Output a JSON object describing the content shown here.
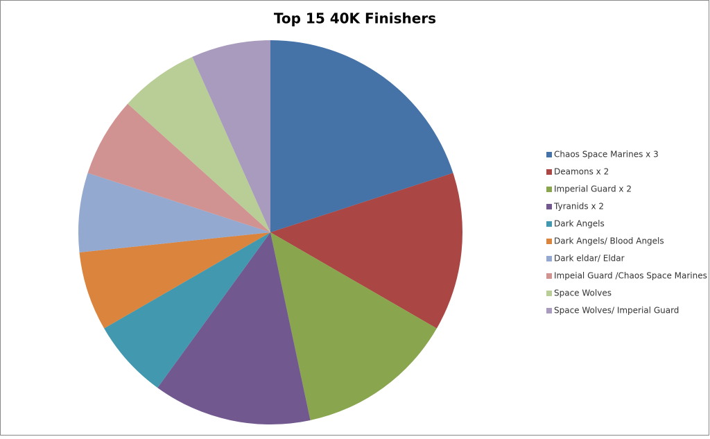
{
  "chart_data": {
    "type": "pie",
    "title": "Top 15 40K Finishers",
    "categories": [
      "Chaos Space Marines x 3",
      "Deamons x 2",
      "Imperial Guard x 2",
      "Tyranids x 2",
      "Dark Angels",
      "Dark Angels/ Blood Angels",
      "Dark eldar/ Eldar",
      "Impeial Guard /Chaos Space Marines",
      "Space Wolves",
      "Space Wolves/ Imperial Guard"
    ],
    "values": [
      3,
      2,
      2,
      2,
      1,
      1,
      1,
      1,
      1,
      1
    ],
    "colors": [
      "#4572a7",
      "#aa4643",
      "#89a54e",
      "#71588f",
      "#4198af",
      "#db843d",
      "#93a9cf",
      "#d19392",
      "#b9cd96",
      "#a99bbd"
    ],
    "legend": "right"
  }
}
